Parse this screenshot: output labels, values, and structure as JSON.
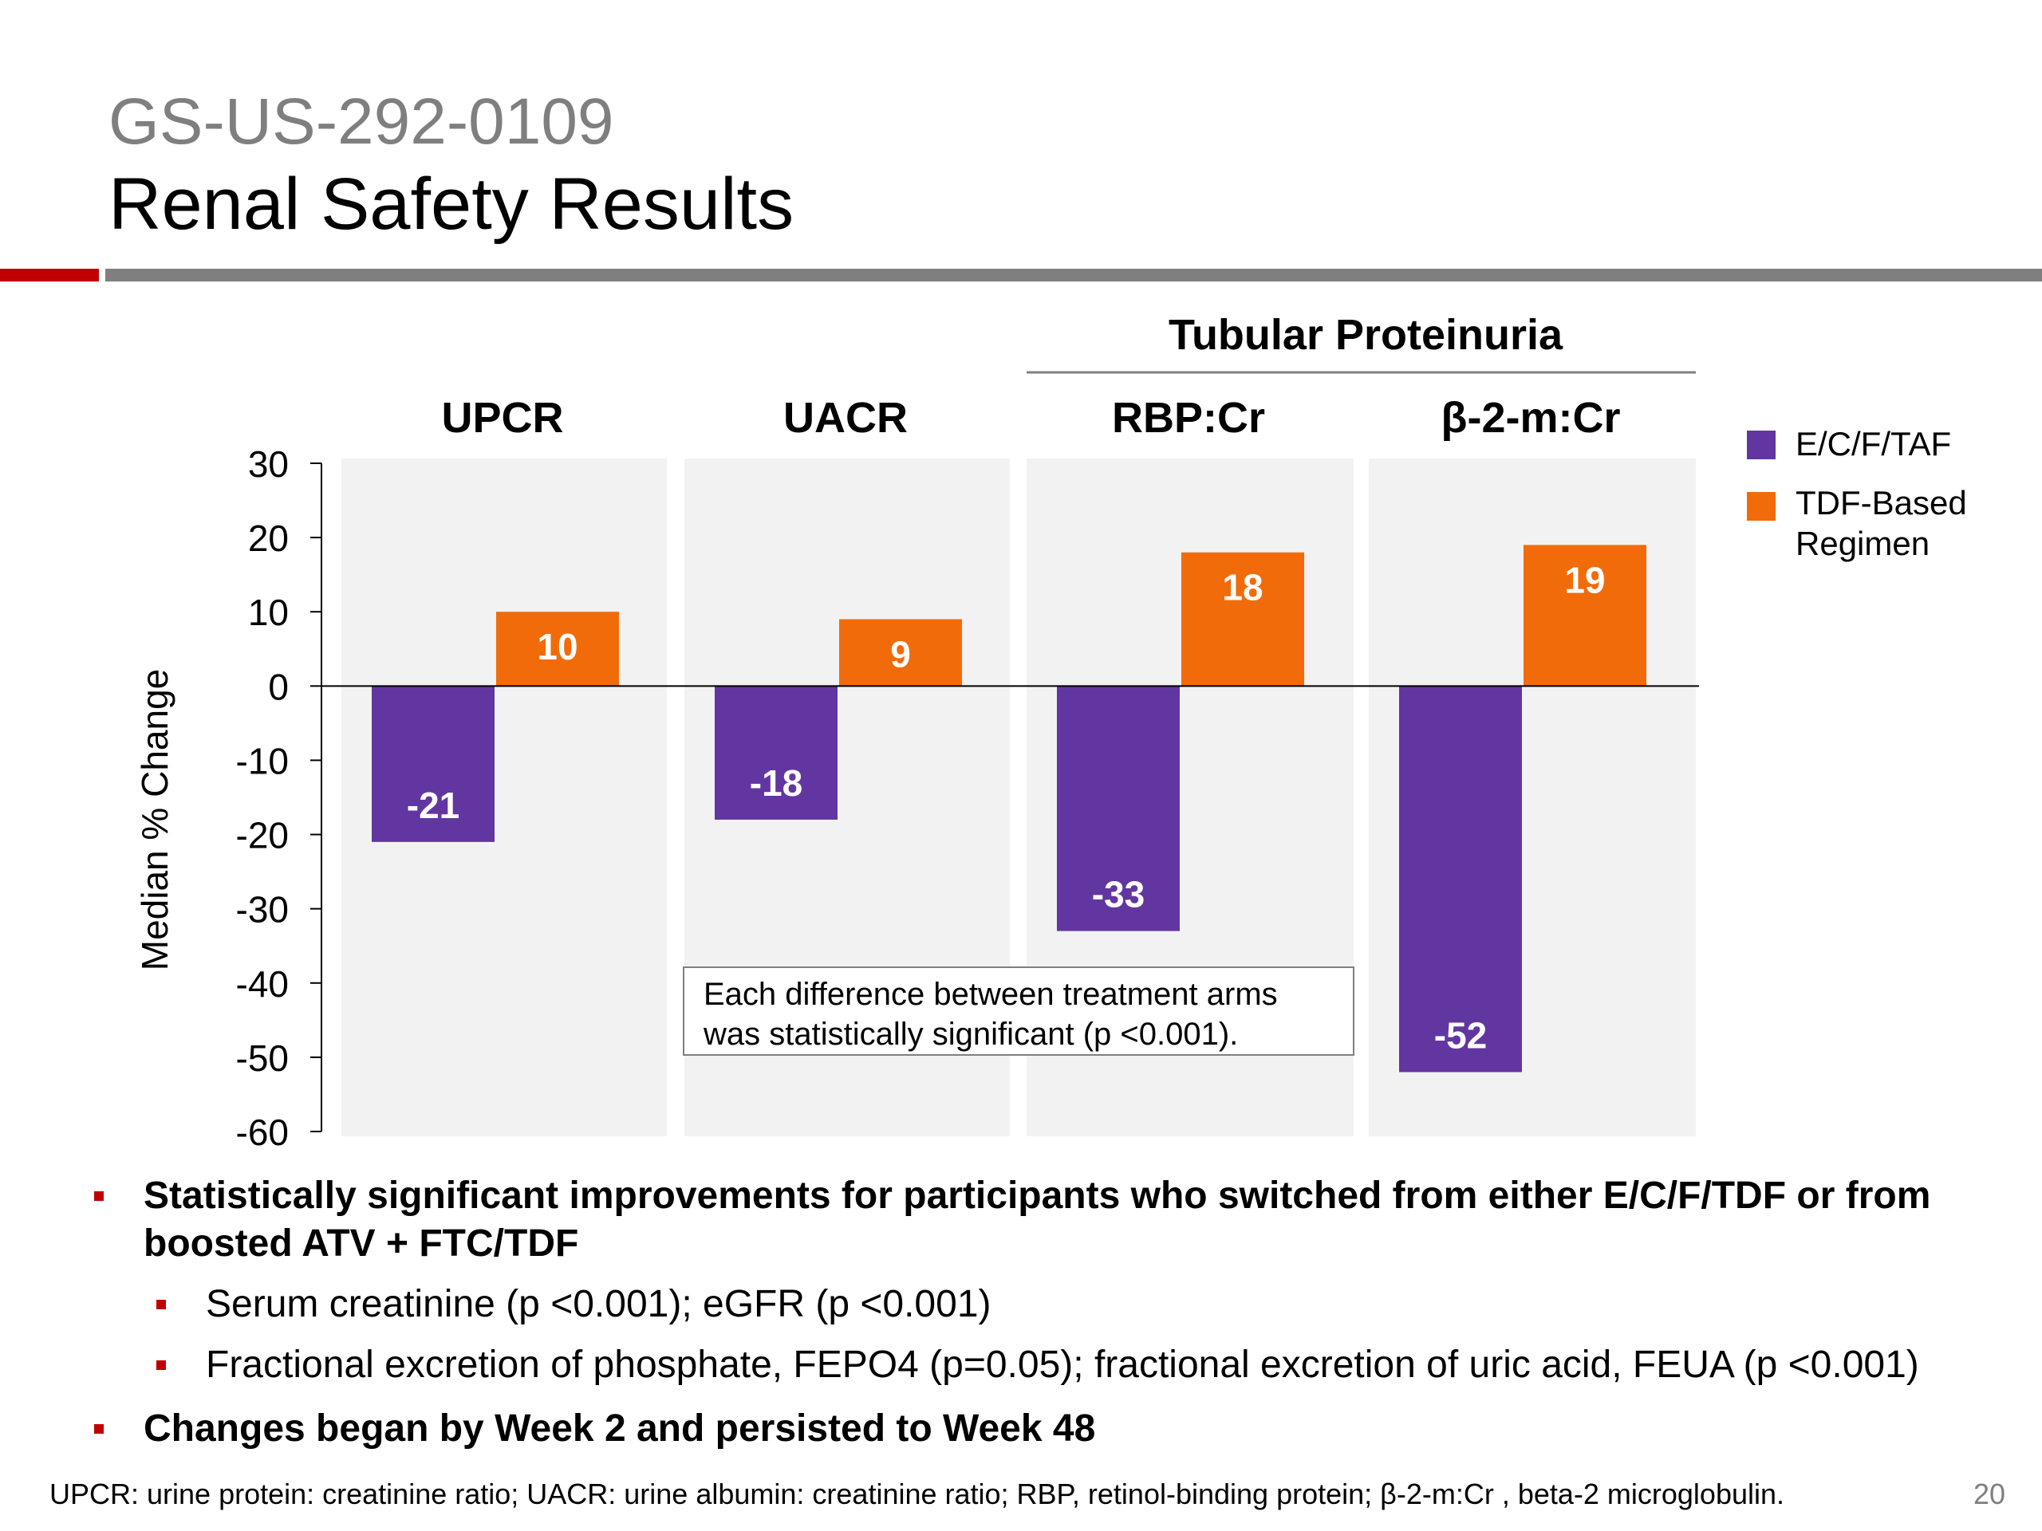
{
  "slide": {
    "subtitle": "GS-US-292-0109",
    "title": "Renal Safety Results"
  },
  "colors": {
    "series_ecftaf": "#6236A0",
    "series_tdf": "#F26B0A",
    "panel_bg": "#F2F2F2",
    "accent_red": "#C00000",
    "rule_gray": "#7F7F7F"
  },
  "chart_data": {
    "type": "bar",
    "group_header": "Tubular Proteinuria",
    "categories": [
      "UPCR",
      "UACR",
      "RBP:Cr",
      "β-2-m:Cr"
    ],
    "ylabel": "Median % Change",
    "ylim": [
      -60,
      30
    ],
    "yticks": [
      30,
      20,
      10,
      0,
      -10,
      -20,
      -30,
      -40,
      -50,
      -60
    ],
    "legend_position": "right",
    "grid": false,
    "series": [
      {
        "name": "E/C/F/TAF",
        "values": [
          -21,
          -18,
          -33,
          -52
        ]
      },
      {
        "name": "TDF-Based Regimen",
        "values": [
          10,
          9,
          18,
          19
        ]
      }
    ],
    "annotation": [
      "Each difference between treatment arms",
      "was statistically significant (p <0.001)."
    ]
  },
  "legend": {
    "item1": "E/C/F/TAF",
    "item2_line1": "TDF-Based",
    "item2_line2": "Regimen"
  },
  "bullets": {
    "b1_line1": "Statistically significant improvements for participants who switched from either E/C/F/TDF or from",
    "b1_line2": "boosted ATV + FTC/TDF",
    "b2": "Serum creatinine (p <0.001); eGFR (p <0.001)",
    "b3": "Fractional excretion of phosphate, FEPO4 (p=0.05); fractional excretion of uric acid, FEUA (p <0.001)",
    "b4": "Changes began by Week 2 and persisted to Week 48"
  },
  "footnote": "UPCR: urine protein: creatinine ratio; UACR: urine albumin: creatinine ratio; RBP, retinol-binding protein; β-2-m:Cr , beta-2 microglobulin.",
  "page_number": "20"
}
